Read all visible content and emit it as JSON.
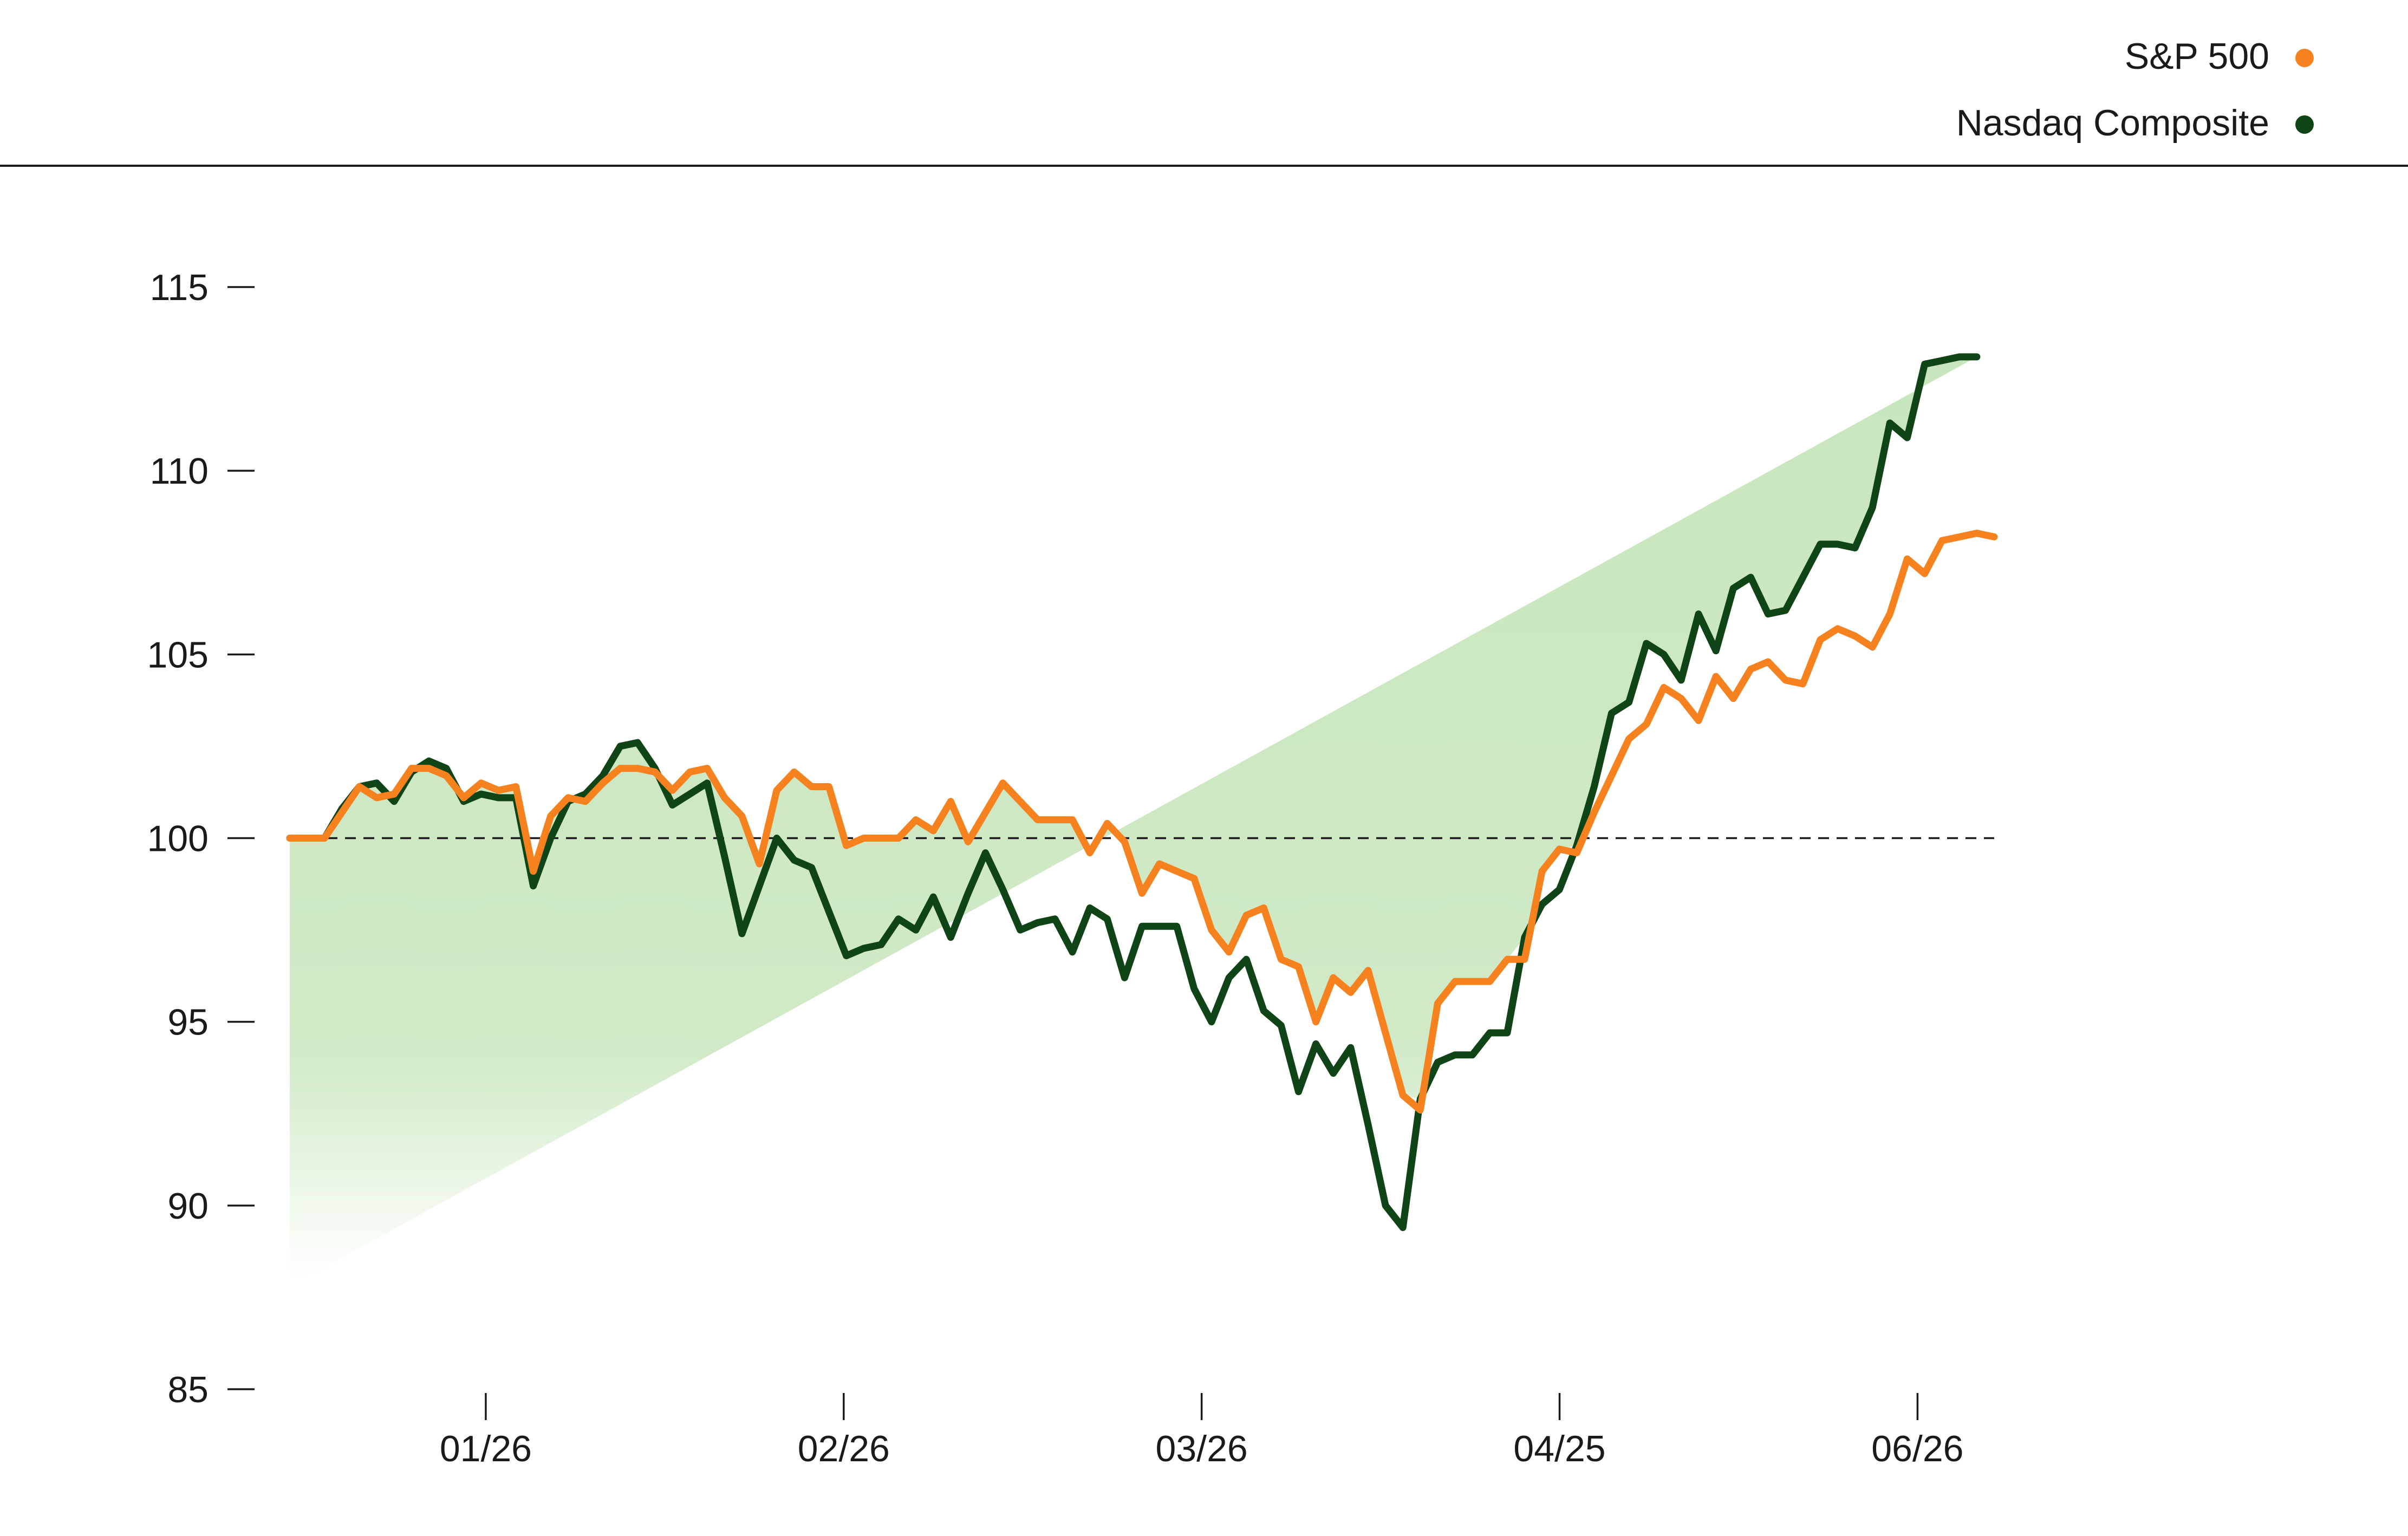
{
  "colors": {
    "sp500": "#f5821f",
    "nasdaq": "#0f4416",
    "fill_top": "#c8e6bd",
    "fill_bottom": "#ffffff",
    "axis": "#1a1a1a",
    "baseline": "#1a1a1a"
  },
  "legend": {
    "placement": "top-right",
    "items": [
      {
        "label": "S&P 500",
        "color": "#f5821f"
      },
      {
        "label": "Nasdaq Composite",
        "color": "#0f4416"
      }
    ]
  },
  "chart_data": {
    "type": "line",
    "title": "",
    "xlabel": "",
    "ylabel": "",
    "ylim": [
      85,
      115
    ],
    "yticks": [
      "115",
      "110",
      "105",
      "100",
      "95",
      "90",
      "85"
    ],
    "ytick_values": [
      115,
      110,
      105,
      100,
      95,
      90,
      85
    ],
    "xticks": [
      "01/26",
      "02/26",
      "03/26",
      "04/25",
      "06/26"
    ],
    "xtick_positions": [
      11.5,
      32.5,
      53.5,
      74.5,
      95.5
    ],
    "xlim": [
      0,
      100
    ],
    "reference_line": {
      "value": 100,
      "style": "dashed"
    },
    "grid": false,
    "series": [
      {
        "name": "S&P 500",
        "color": "#f5821f",
        "values": [
          100,
          100,
          100,
          100.7,
          101.4,
          101.1,
          101.2,
          101.9,
          101.9,
          101.7,
          101.1,
          101.5,
          101.3,
          101.4,
          99.1,
          100.6,
          101.1,
          101,
          101.5,
          101.9,
          101.9,
          101.8,
          101.3,
          101.8,
          101.9,
          101.1,
          100.6,
          99.3,
          101.3,
          101.8,
          101.4,
          101.4,
          99.8,
          100,
          100,
          100,
          100.5,
          100.2,
          101,
          99.9,
          100.7,
          101.5,
          101,
          100.5,
          100.5,
          100.5,
          99.6,
          100.4,
          99.9,
          98.5,
          99.3,
          99.1,
          98.9,
          97.5,
          96.9,
          97.9,
          98.1,
          96.7,
          96.5,
          95,
          96.2,
          95.8,
          96.4,
          94.7,
          93,
          92.6,
          95.5,
          96.1,
          96.1,
          96.1,
          96.7,
          96.7,
          99.1,
          99.7,
          99.6,
          100.7,
          101.7,
          102.7,
          103.1,
          104.1,
          103.8,
          103.2,
          104.4,
          103.8,
          104.6,
          104.8,
          104.3,
          104.2,
          105.4,
          105.7,
          105.5,
          105.2,
          106.1,
          107.6,
          107.2,
          108.1,
          108.2,
          108.3,
          108.2
        ]
      },
      {
        "name": "Nasdaq Composite",
        "color": "#0f4416",
        "values": [
          100,
          100,
          100,
          100.8,
          101.4,
          101.5,
          101,
          101.8,
          102.1,
          101.9,
          101,
          101.2,
          101.1,
          101.1,
          98.7,
          100,
          101,
          101.2,
          101.7,
          102.5,
          102.6,
          101.9,
          100.9,
          101.2,
          101.5,
          99.5,
          97.4,
          98.7,
          100,
          99.4,
          99.2,
          98,
          96.8,
          97,
          97.1,
          97.8,
          97.5,
          98.4,
          97.3,
          98.5,
          99.6,
          98.6,
          97.5,
          97.7,
          97.8,
          96.9,
          98.1,
          97.8,
          96.2,
          97.6,
          97.6,
          97.6,
          95.9,
          95,
          96.2,
          96.7,
          95.3,
          94.9,
          93.1,
          94.4,
          93.6,
          94.3,
          92.2,
          90,
          89.4,
          92.9,
          93.9,
          94.1,
          94.1,
          94.7,
          94.7,
          97.3,
          98.2,
          98.6,
          99.8,
          101.4,
          103.4,
          103.7,
          105.3,
          105,
          104.3,
          106.1,
          105.1,
          106.8,
          107.1,
          106.1,
          106.2,
          107.1,
          108,
          108,
          107.9,
          109,
          111.3,
          110.9,
          112.9,
          113,
          113.1,
          113.1
        ]
      }
    ]
  }
}
